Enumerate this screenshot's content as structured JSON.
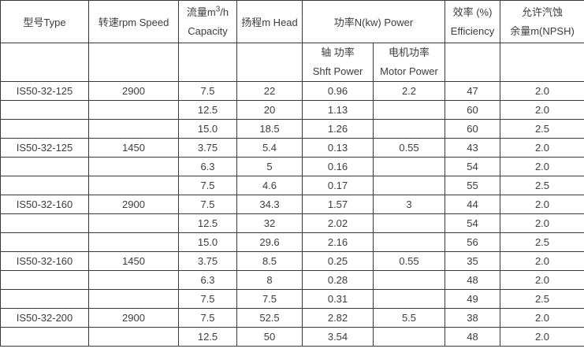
{
  "table": {
    "title": "pump-specification-table",
    "colors": {
      "border": "#3a3a3a",
      "text": "#3c3c3c",
      "background": "#ffffff"
    },
    "header": {
      "type": "型号Type",
      "speed": "转速rpm Speed",
      "capacity_line1_prefix": "流量m",
      "capacity_line1_sup": "3",
      "capacity_line1_suffix": "/h",
      "capacity_line2": "Capacity",
      "head": "扬程m Head",
      "power_group": "功率N(kw) Power",
      "shaft_power_line1": "轴 功率",
      "shaft_power_line2": "Shft Power",
      "motor_power_line1": "电机功率",
      "motor_power_line2": "Motor Power",
      "efficiency_line1": "效率 (%)",
      "efficiency_line2": "Efficiency",
      "npsh_line1": "允许汽蚀",
      "npsh_line2": "余量m(NPSH)"
    },
    "rows": [
      [
        "IS50-32-125",
        "2900",
        "7.5",
        "22",
        "0.96",
        "2.2",
        "47",
        "2.0"
      ],
      [
        "",
        "",
        "12.5",
        "20",
        "1.13",
        "",
        "60",
        "2.0"
      ],
      [
        "",
        "",
        "15.0",
        "18.5",
        "1.26",
        "",
        "60",
        "2.5"
      ],
      [
        "IS50-32-125",
        "1450",
        "3.75",
        "5.4",
        "0.13",
        "0.55",
        "43",
        "2.0"
      ],
      [
        "",
        "",
        "6.3",
        "5",
        "0.16",
        "",
        "54",
        "2.0"
      ],
      [
        "",
        "",
        "7.5",
        "4.6",
        "0.17",
        "",
        "55",
        "2.5"
      ],
      [
        "IS50-32-160",
        "2900",
        "7.5",
        "34.3",
        "1.57",
        "3",
        "44",
        "2.0"
      ],
      [
        "",
        "",
        "12.5",
        "32",
        "2.02",
        "",
        "54",
        "2.0"
      ],
      [
        "",
        "",
        "15.0",
        "29.6",
        "2.16",
        "",
        "56",
        "2.5"
      ],
      [
        "IS50-32-160",
        "1450",
        "3.75",
        "8.5",
        "0.25",
        "0.55",
        "35",
        "2.0"
      ],
      [
        "",
        "",
        "6.3",
        "8",
        "0.28",
        "",
        "48",
        "2.0"
      ],
      [
        "",
        "",
        "7.5",
        "7.5",
        "0.31",
        "",
        "49",
        "2.5"
      ],
      [
        "IS50-32-200",
        "2900",
        "7.5",
        "52.5",
        "2.82",
        "5.5",
        "38",
        "2.0"
      ],
      [
        "",
        "",
        "12.5",
        "50",
        "3.54",
        "",
        "48",
        "2.0"
      ]
    ]
  }
}
